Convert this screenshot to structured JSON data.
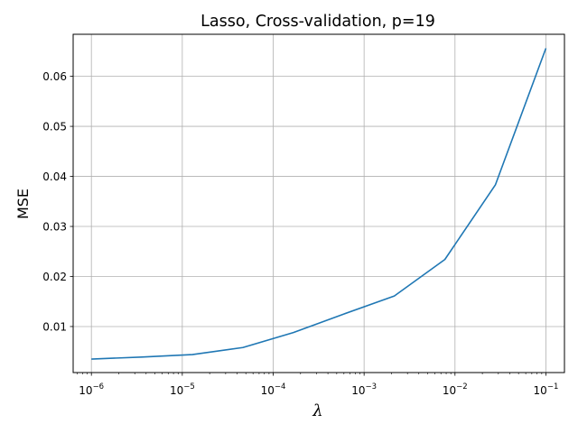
{
  "chart_data": {
    "type": "line",
    "title": "Lasso, Cross-validation, p=19",
    "xlabel": "λ",
    "ylabel": "MSE",
    "x_scale": "log",
    "grid": true,
    "xlim": [
      6.3e-07,
      0.16
    ],
    "ylim": [
      0.0008,
      0.0684
    ],
    "x_ticks": [
      {
        "value": 1e-06,
        "base": "10",
        "exp": "−6"
      },
      {
        "value": 1e-05,
        "base": "10",
        "exp": "−5"
      },
      {
        "value": 0.0001,
        "base": "10",
        "exp": "−4"
      },
      {
        "value": 0.001,
        "base": "10",
        "exp": "−3"
      },
      {
        "value": 0.01,
        "base": "10",
        "exp": "−2"
      },
      {
        "value": 0.1,
        "base": "10",
        "exp": "−1"
      }
    ],
    "y_ticks": [
      {
        "value": 0.01,
        "label": "0.01"
      },
      {
        "value": 0.02,
        "label": "0.02"
      },
      {
        "value": 0.03,
        "label": "0.03"
      },
      {
        "value": 0.04,
        "label": "0.04"
      },
      {
        "value": 0.05,
        "label": "0.05"
      },
      {
        "value": 0.06,
        "label": "0.06"
      }
    ],
    "series": [
      {
        "color": "#1f77b4",
        "x": [
          1e-06,
          3.59e-06,
          1.29e-05,
          4.64e-05,
          0.000167,
          0.000599,
          0.00215,
          0.00774,
          0.0278,
          0.1
        ],
        "y": [
          0.0035,
          0.0039,
          0.0044,
          0.0058,
          0.0088,
          0.0125,
          0.0161,
          0.0234,
          0.0383,
          0.0656
        ]
      }
    ]
  }
}
